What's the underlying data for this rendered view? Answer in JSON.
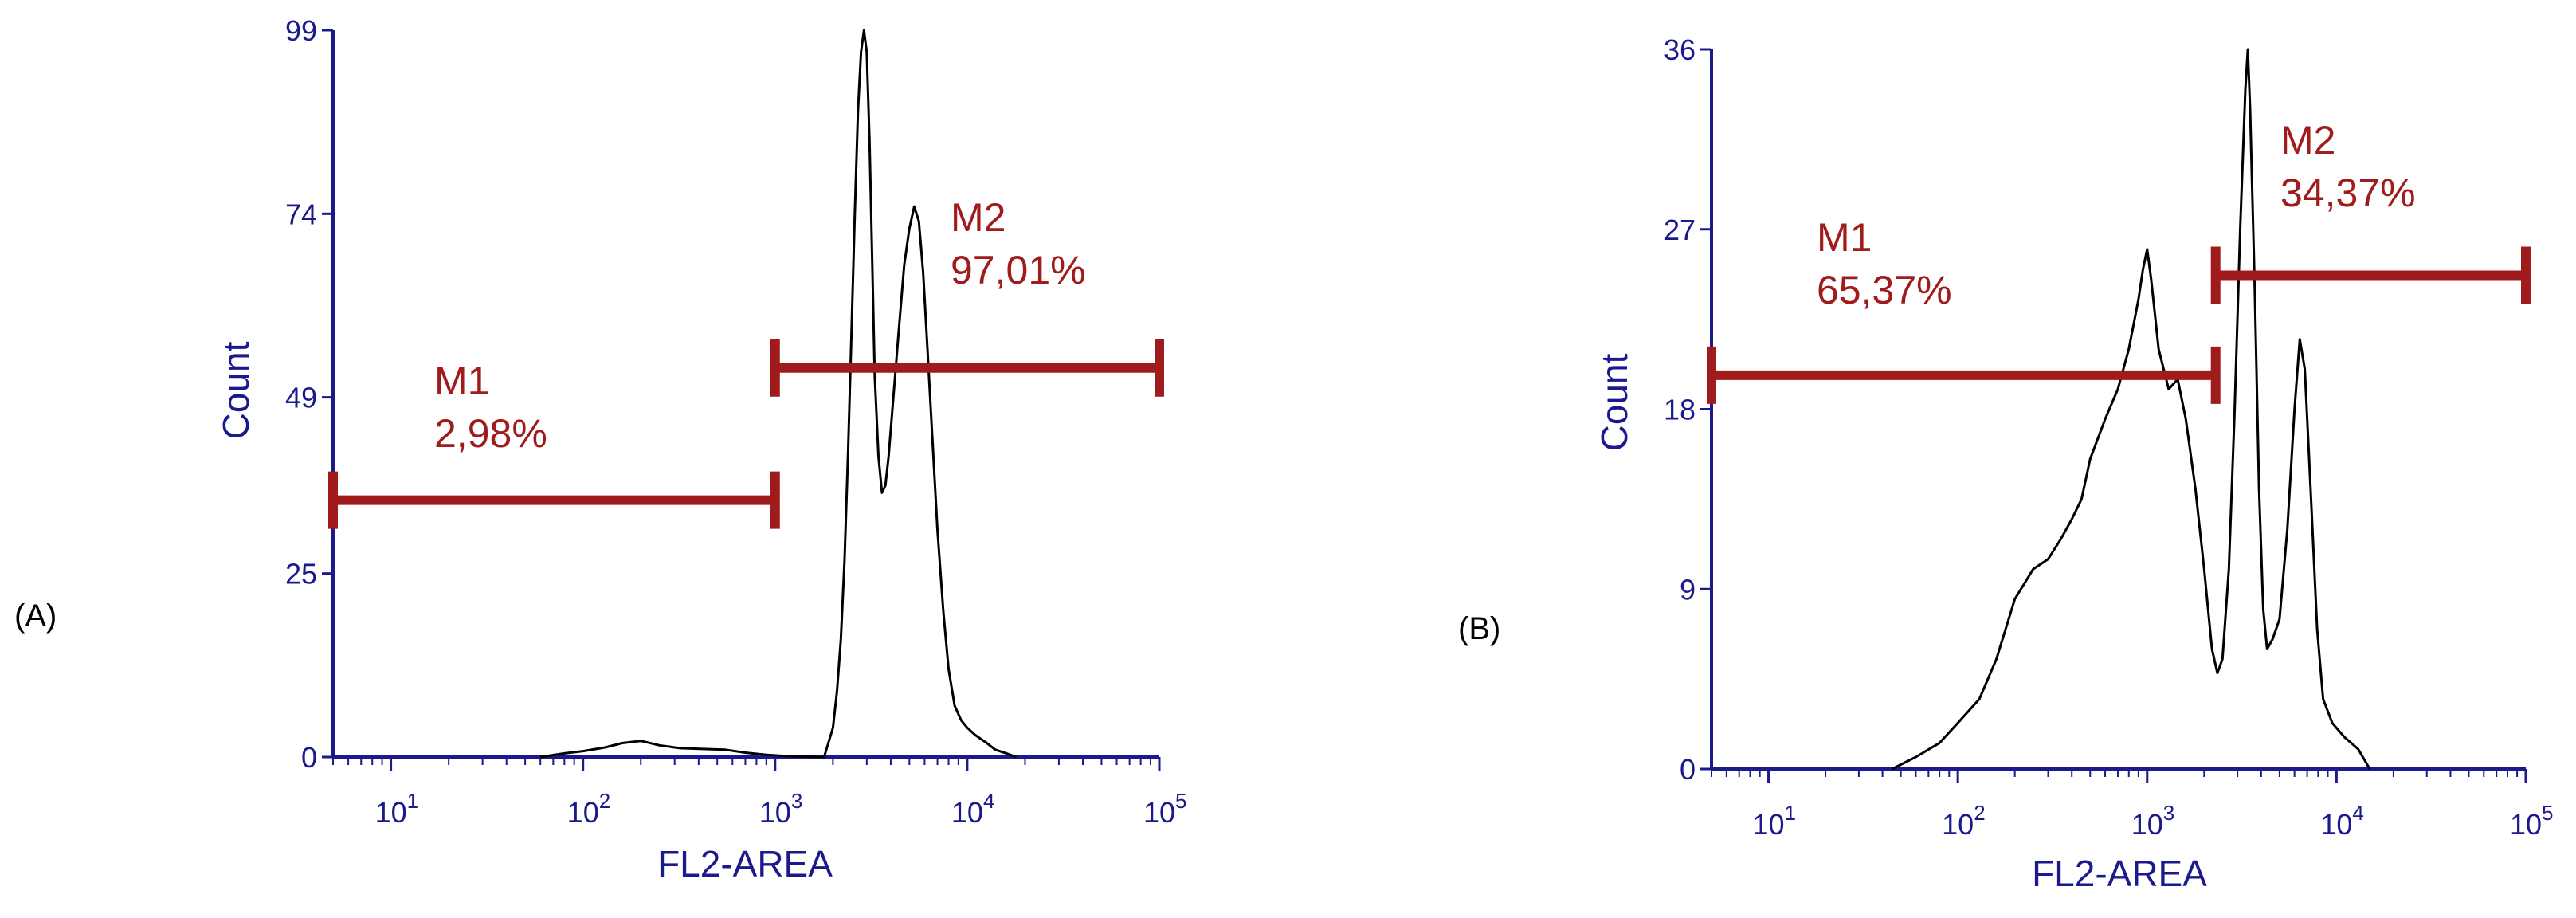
{
  "panels": [
    {
      "label": "(A)",
      "chart_data": {
        "type": "line",
        "xlabel": "FL2-AREA",
        "ylabel": "Count",
        "x_scale": "log",
        "xlim": [
          5,
          100000
        ],
        "ylim": [
          0,
          99
        ],
        "y_ticks": [
          0,
          25,
          49,
          74,
          99
        ],
        "x_ticks": [
          {
            "base": "10",
            "exp": "1"
          },
          {
            "base": "10",
            "exp": "2"
          },
          {
            "base": "10",
            "exp": "3"
          },
          {
            "base": "10",
            "exp": "4"
          },
          {
            "base": "10",
            "exp": "5"
          }
        ],
        "series": [
          {
            "values": [
              [
                60,
                0
              ],
              [
                80,
                0.5
              ],
              [
                100,
                0.8
              ],
              [
                130,
                1.3
              ],
              [
                160,
                1.9
              ],
              [
                200,
                2.2
              ],
              [
                250,
                1.6
              ],
              [
                320,
                1.2
              ],
              [
                420,
                1.1
              ],
              [
                550,
                1.0
              ],
              [
                700,
                0.6
              ],
              [
                900,
                0.3
              ],
              [
                1200,
                0.1
              ],
              [
                1800,
                0
              ],
              [
                2000,
                4
              ],
              [
                2100,
                9
              ],
              [
                2200,
                16
              ],
              [
                2300,
                27
              ],
              [
                2400,
                42
              ],
              [
                2500,
                58
              ],
              [
                2600,
                74
              ],
              [
                2700,
                88
              ],
              [
                2800,
                96
              ],
              [
                2900,
                99
              ],
              [
                3000,
                96
              ],
              [
                3100,
                84
              ],
              [
                3200,
                68
              ],
              [
                3300,
                52
              ],
              [
                3450,
                41
              ],
              [
                3600,
                36
              ],
              [
                3750,
                37
              ],
              [
                3900,
                41
              ],
              [
                4100,
                48
              ],
              [
                4400,
                58
              ],
              [
                4700,
                67
              ],
              [
                5000,
                72
              ],
              [
                5300,
                75
              ],
              [
                5600,
                73
              ],
              [
                5900,
                66
              ],
              [
                6200,
                56
              ],
              [
                6600,
                43
              ],
              [
                7000,
                31
              ],
              [
                7500,
                20
              ],
              [
                8000,
                12
              ],
              [
                8600,
                7
              ],
              [
                9300,
                5
              ],
              [
                10000,
                4
              ],
              [
                11000,
                3
              ],
              [
                12500,
                2
              ],
              [
                14000,
                1
              ],
              [
                16000,
                0.5
              ],
              [
                18000,
                0
              ]
            ]
          }
        ],
        "markers": [
          {
            "name": "M1",
            "percent": "2,98%",
            "x_range": [
              5,
              1000
            ],
            "y": 35
          },
          {
            "name": "M2",
            "percent": "97,01%",
            "x_range": [
              1000,
              100000
            ],
            "y": 53
          }
        ]
      }
    },
    {
      "label": "(B)",
      "chart_data": {
        "type": "line",
        "xlabel": "FL2-AREA",
        "ylabel": "Count",
        "x_scale": "log",
        "xlim": [
          5,
          100000
        ],
        "ylim": [
          0,
          36
        ],
        "y_ticks": [
          0,
          9,
          18,
          27,
          36
        ],
        "x_ticks": [
          {
            "base": "10",
            "exp": "1"
          },
          {
            "base": "10",
            "exp": "2"
          },
          {
            "base": "10",
            "exp": "3"
          },
          {
            "base": "10",
            "exp": "4"
          },
          {
            "base": "10",
            "exp": "5"
          }
        ],
        "series": [
          {
            "values": [
              [
                45,
                0
              ],
              [
                60,
                0.6
              ],
              [
                80,
                1.3
              ],
              [
                100,
                2.3
              ],
              [
                130,
                3.5
              ],
              [
                160,
                5.5
              ],
              [
                200,
                8.5
              ],
              [
                250,
                10
              ],
              [
                300,
                10.5
              ],
              [
                350,
                11.5
              ],
              [
                400,
                12.5
              ],
              [
                450,
                13.5
              ],
              [
                500,
                15.5
              ],
              [
                600,
                17.5
              ],
              [
                700,
                19
              ],
              [
                800,
                21
              ],
              [
                900,
                23.5
              ],
              [
                950,
                25
              ],
              [
                1000,
                26
              ],
              [
                1050,
                24.5
              ],
              [
                1150,
                21
              ],
              [
                1300,
                19
              ],
              [
                1450,
                19.5
              ],
              [
                1600,
                17.5
              ],
              [
                1800,
                14
              ],
              [
                2000,
                10
              ],
              [
                2200,
                6
              ],
              [
                2350,
                4.8
              ],
              [
                2500,
                5.5
              ],
              [
                2700,
                10
              ],
              [
                2900,
                18
              ],
              [
                3100,
                27
              ],
              [
                3300,
                34
              ],
              [
                3400,
                36
              ],
              [
                3500,
                33
              ],
              [
                3700,
                24
              ],
              [
                3900,
                14
              ],
              [
                4100,
                8
              ],
              [
                4300,
                6
              ],
              [
                4600,
                6.5
              ],
              [
                5000,
                7.5
              ],
              [
                5500,
                12
              ],
              [
                6000,
                18
              ],
              [
                6400,
                21.5
              ],
              [
                6800,
                20
              ],
              [
                7300,
                14
              ],
              [
                7900,
                7
              ],
              [
                8500,
                3.5
              ],
              [
                9500,
                2.3
              ],
              [
                11000,
                1.6
              ],
              [
                13000,
                1
              ],
              [
                15000,
                0
              ]
            ]
          }
        ],
        "markers": [
          {
            "name": "M1",
            "percent": "65,37%",
            "x_range": [
              5,
              2300
            ],
            "y": 19.7
          },
          {
            "name": "M2",
            "percent": "34,37%",
            "x_range": [
              2300,
              100000
            ],
            "y": 24.7
          }
        ]
      }
    }
  ]
}
